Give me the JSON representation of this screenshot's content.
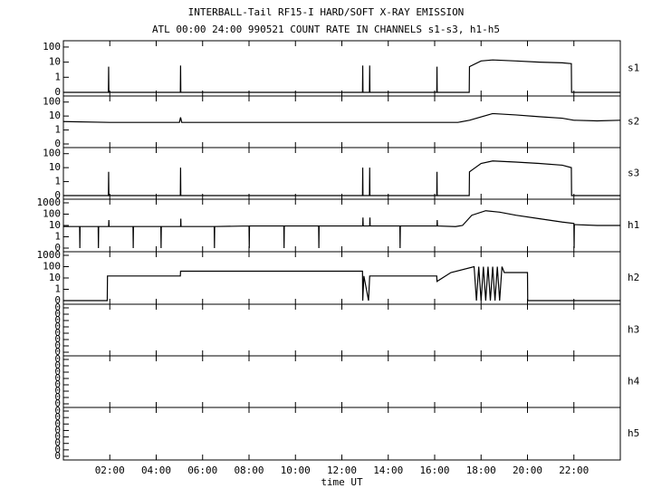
{
  "chart_data": [
    {
      "type": "line",
      "title": "INTERBALL-Tail RF15-I HARD/SOFT X-RAY EMISSION",
      "subtitle": "ATL 00:00 24:00 990521  COUNT RATE IN CHANNELS s1-s3, h1-h5",
      "label": "s1",
      "yscale": "symlog",
      "xlim": [
        0,
        24
      ],
      "ylim": [
        0,
        150
      ],
      "yticks": [
        0,
        1,
        10,
        100
      ],
      "color": "#000000",
      "x": [
        0,
        1.94,
        1.95,
        1.96,
        5.04,
        5.05,
        5.06,
        12.89,
        12.9,
        12.91,
        13.19,
        13.2,
        13.21,
        16.09,
        16.1,
        16.11,
        17.49,
        17.5,
        18.0,
        18.5,
        19.5,
        20.5,
        21.5,
        21.89,
        21.9,
        24
      ],
      "values": [
        0,
        0,
        5,
        0,
        0,
        6,
        0,
        0,
        6,
        0,
        0,
        6,
        0,
        0,
        5,
        0,
        0,
        5,
        12,
        14,
        12,
        10,
        9,
        8,
        0,
        0
      ]
    },
    {
      "type": "line",
      "label": "s2",
      "yscale": "symlog",
      "xlim": [
        0,
        24
      ],
      "ylim": [
        0,
        150
      ],
      "yticks": [
        0,
        1,
        10,
        100
      ],
      "color": "#000000",
      "x": [
        0,
        2,
        4,
        5,
        5.05,
        5.1,
        8,
        12,
        16,
        17,
        17.5,
        18.5,
        19.5,
        20.5,
        21.5,
        22,
        23,
        24
      ],
      "values": [
        4,
        3.5,
        3.5,
        3.5,
        8,
        3.5,
        3.5,
        3.5,
        3.5,
        3.5,
        5,
        15,
        12,
        9,
        7,
        5,
        4.5,
        5
      ]
    },
    {
      "type": "line",
      "label": "s3",
      "yscale": "symlog",
      "xlim": [
        0,
        24
      ],
      "ylim": [
        0,
        150
      ],
      "yticks": [
        0,
        1,
        10,
        100
      ],
      "color": "#000000",
      "x": [
        0,
        1.94,
        1.95,
        1.96,
        5.04,
        5.05,
        5.06,
        12.89,
        12.9,
        12.91,
        13.19,
        13.2,
        13.21,
        16.09,
        16.1,
        16.11,
        17.49,
        17.5,
        18.0,
        18.5,
        19.5,
        20.5,
        21.5,
        21.89,
        21.9,
        24
      ],
      "values": [
        0,
        0,
        5,
        0,
        0,
        10,
        0,
        0,
        10,
        0,
        0,
        10,
        0,
        0,
        5,
        0,
        0,
        5,
        20,
        30,
        25,
        20,
        15,
        10,
        0,
        0
      ]
    },
    {
      "type": "line",
      "label": "h1",
      "yscale": "symlog",
      "xlim": [
        0,
        24
      ],
      "ylim": [
        0,
        1000
      ],
      "yticks": [
        0,
        1,
        10,
        100,
        1000
      ],
      "color": "#000000",
      "x": [
        0,
        0.7,
        0.71,
        0.72,
        1.5,
        1.51,
        1.52,
        1.95,
        1.96,
        1.97,
        3,
        3.01,
        3.02,
        4.2,
        4.21,
        4.22,
        5.05,
        5.06,
        5.07,
        6.5,
        6.51,
        6.52,
        8,
        8.01,
        8.02,
        9.5,
        9.51,
        9.52,
        11,
        11.01,
        11.02,
        12.9,
        12.91,
        12.92,
        13.2,
        13.21,
        13.22,
        14.5,
        14.51,
        14.52,
        16.1,
        16.11,
        16.12,
        16.9,
        17.2,
        17.6,
        18.2,
        18.8,
        19.5,
        20.5,
        21.5,
        22,
        22.01,
        22.02,
        23,
        24
      ],
      "values": [
        8,
        8,
        0,
        8,
        8,
        0,
        8,
        8,
        30,
        8,
        8,
        0,
        8,
        8,
        0,
        8,
        8,
        40,
        8,
        8,
        0,
        8,
        9,
        0,
        9,
        9,
        0,
        9,
        9,
        0,
        9,
        9,
        50,
        9,
        9,
        50,
        9,
        9,
        0,
        9,
        9,
        30,
        9,
        8,
        10,
        80,
        200,
        150,
        80,
        40,
        20,
        15,
        0,
        12,
        10,
        10
      ]
    },
    {
      "type": "line",
      "label": "h2",
      "yscale": "symlog",
      "xlim": [
        0,
        24
      ],
      "ylim": [
        0,
        1000
      ],
      "yticks": [
        0,
        1,
        10,
        100,
        1000
      ],
      "color": "#000000",
      "x": [
        0,
        1.89,
        1.9,
        5.04,
        5.05,
        12.89,
        12.9,
        12.95,
        13.15,
        13.2,
        16.09,
        16.1,
        16.7,
        17.7,
        17.8,
        17.9,
        18.0,
        18.1,
        18.2,
        18.3,
        18.4,
        18.5,
        18.6,
        18.7,
        18.8,
        18.9,
        19.0,
        20.0,
        20.01,
        24
      ],
      "values": [
        0,
        0,
        15,
        15,
        40,
        40,
        0,
        15,
        0,
        15,
        15,
        5,
        30,
        100,
        0,
        100,
        0,
        100,
        0,
        100,
        0,
        100,
        0,
        100,
        0,
        100,
        30,
        30,
        0,
        0
      ]
    },
    {
      "type": "line",
      "label": "h3",
      "yscale": "linear",
      "xlim": [
        0,
        24
      ],
      "ylim": [
        0,
        0.35
      ],
      "yticks": [
        0,
        {
          "value": 0.05,
          "label": "0"
        },
        {
          "value": 0.1,
          "label": "0"
        },
        {
          "value": 0.15,
          "label": "0"
        },
        {
          "value": 0.2,
          "label": "0"
        },
        {
          "value": 0.25,
          "label": "0"
        },
        {
          "value": 0.3,
          "label": "0"
        },
        {
          "value": 0.35,
          "label": "0"
        }
      ]
    },
    {
      "type": "line",
      "label": "h4",
      "yscale": "linear",
      "xlim": [
        0,
        24
      ],
      "ylim": [
        0,
        0.35
      ],
      "yticks": [
        0,
        {
          "value": 0.05,
          "label": "0"
        },
        {
          "value": 0.1,
          "label": "0"
        },
        {
          "value": 0.15,
          "label": "0"
        },
        {
          "value": 0.2,
          "label": "0"
        },
        {
          "value": 0.25,
          "label": "0"
        },
        {
          "value": 0.3,
          "label": "0"
        },
        {
          "value": 0.35,
          "label": "0"
        }
      ]
    },
    {
      "type": "line",
      "label": "h5",
      "yscale": "linear",
      "xlim": [
        0,
        24
      ],
      "ylim": [
        0,
        0.35
      ],
      "yticks": [
        0,
        {
          "value": 0.05,
          "label": "0"
        },
        {
          "value": 0.1,
          "label": "0"
        },
        {
          "value": 0.15,
          "label": "0"
        },
        {
          "value": 0.2,
          "label": "0"
        },
        {
          "value": 0.25,
          "label": "0"
        },
        {
          "value": 0.3,
          "label": "0"
        },
        {
          "value": 0.35,
          "label": "0"
        }
      ],
      "xlabel": "time UT",
      "xticks": [
        {
          "value": 2,
          "label": "02:00"
        },
        {
          "value": 4,
          "label": "04:00"
        },
        {
          "value": 6,
          "label": "06:00"
        },
        {
          "value": 8,
          "label": "08:00"
        },
        {
          "value": 10,
          "label": "10:00"
        },
        {
          "value": 12,
          "label": "12:00"
        },
        {
          "value": 14,
          "label": "14:00"
        },
        {
          "value": 16,
          "label": "16:00"
        },
        {
          "value": 18,
          "label": "18:00"
        },
        {
          "value": 20,
          "label": "20:00"
        },
        {
          "value": 22,
          "label": "22:00"
        }
      ]
    }
  ]
}
